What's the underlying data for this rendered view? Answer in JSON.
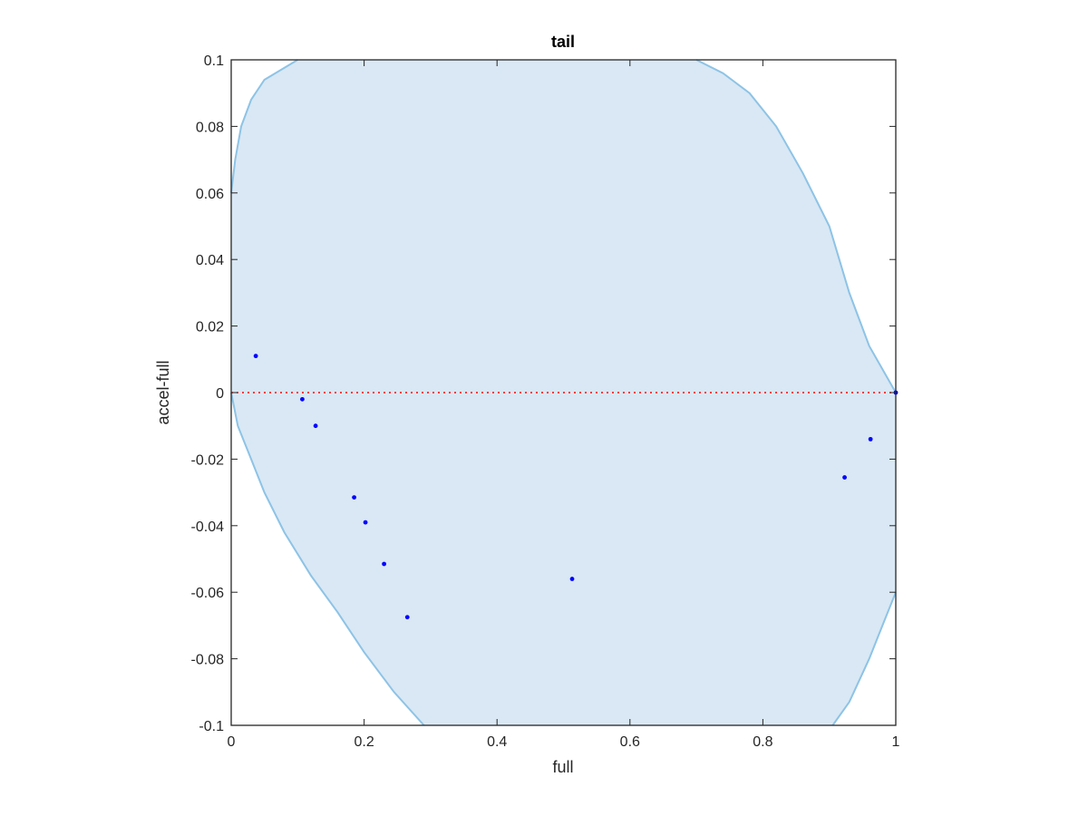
{
  "chart_data": {
    "type": "scatter",
    "title": "tail",
    "xlabel": "full",
    "ylabel": "accel-full",
    "xlim": [
      0,
      1
    ],
    "ylim": [
      -0.1,
      0.1
    ],
    "xticks": [
      "0",
      "0.2",
      "0.4",
      "0.6",
      "0.8",
      "1"
    ],
    "xtick_values": [
      0,
      0.2,
      0.4,
      0.6,
      0.8,
      1
    ],
    "yticks": [
      "-0.1",
      "-0.08",
      "-0.06",
      "-0.04",
      "-0.02",
      "0",
      "0.02",
      "0.04",
      "0.06",
      "0.08",
      "0.1"
    ],
    "ytick_values": [
      -0.1,
      -0.08,
      -0.06,
      -0.04,
      -0.02,
      0,
      0.02,
      0.04,
      0.06,
      0.08,
      0.1
    ],
    "grid": false,
    "points": [
      {
        "x": 0.037,
        "y": 0.011
      },
      {
        "x": 0.107,
        "y": -0.002
      },
      {
        "x": 0.127,
        "y": -0.01
      },
      {
        "x": 0.185,
        "y": -0.0315
      },
      {
        "x": 0.202,
        "y": -0.039
      },
      {
        "x": 0.23,
        "y": -0.0515
      },
      {
        "x": 0.265,
        "y": -0.0675
      },
      {
        "x": 0.513,
        "y": -0.056
      },
      {
        "x": 0.923,
        "y": -0.0255
      },
      {
        "x": 0.962,
        "y": -0.014
      },
      {
        "x": 1.0,
        "y": 0.0
      }
    ],
    "reference_line": {
      "y": 0,
      "style": "dotted",
      "color": "#ff0000"
    },
    "region": {
      "fill": "#d9e8f4",
      "stroke": "#8dc3e6",
      "left_boundary": [
        [
          0,
          0.06
        ],
        [
          0.006,
          0.07
        ],
        [
          0.015,
          0.08
        ],
        [
          0.03,
          0.088
        ],
        [
          0.05,
          0.094
        ],
        [
          0.1,
          0.1
        ]
      ],
      "right_boundary": [
        [
          0.7,
          0.1
        ],
        [
          0.74,
          0.096
        ],
        [
          0.78,
          0.09
        ],
        [
          0.82,
          0.08
        ],
        [
          0.86,
          0.066
        ],
        [
          0.9,
          0.05
        ],
        [
          0.93,
          0.03
        ],
        [
          0.96,
          0.014
        ],
        [
          1.0,
          0.0
        ]
      ],
      "lower_left_boundary": [
        [
          0,
          0.0
        ],
        [
          0.01,
          -0.01
        ],
        [
          0.03,
          -0.02
        ],
        [
          0.05,
          -0.03
        ],
        [
          0.08,
          -0.042
        ],
        [
          0.12,
          -0.055
        ],
        [
          0.16,
          -0.066
        ],
        [
          0.2,
          -0.078
        ],
        [
          0.245,
          -0.09
        ],
        [
          0.29,
          -0.1
        ]
      ],
      "lower_right_boundary": [
        [
          0.905,
          -0.1
        ],
        [
          0.93,
          -0.093
        ],
        [
          0.96,
          -0.08
        ],
        [
          0.98,
          -0.07
        ],
        [
          1.0,
          -0.06
        ]
      ]
    },
    "colors": {
      "points": "#0000ff",
      "axes": "#262626"
    }
  }
}
